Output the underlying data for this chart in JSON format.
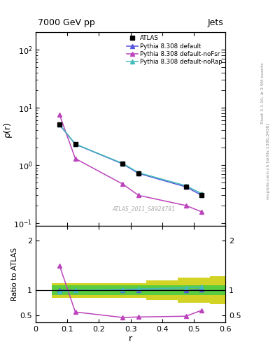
{
  "title_left": "7000 GeV pp",
  "title_right": "Jets",
  "ylabel_main": "ρ(r)",
  "ylabel_ratio": "Ratio to ATLAS",
  "xlabel": "r",
  "watermark": "ATLAS_2011_S8924791",
  "right_label_top": "Rivet 3.1.10, ≥ 2.9M events",
  "right_label_bot": "mcplots.cern.ch [arXiv:1306.3436]",
  "atlas_x": [
    0.075,
    0.125,
    0.275,
    0.325,
    0.475,
    0.525
  ],
  "atlas_y": [
    5.0,
    2.3,
    1.05,
    0.72,
    0.42,
    0.3
  ],
  "default_x": [
    0.075,
    0.125,
    0.275,
    0.325,
    0.475,
    0.525
  ],
  "default_y": [
    5.0,
    2.3,
    1.05,
    0.72,
    0.42,
    0.3
  ],
  "noFsr_x": [
    0.075,
    0.125,
    0.275,
    0.325,
    0.475,
    0.525
  ],
  "noFsr_y": [
    7.5,
    1.3,
    0.47,
    0.3,
    0.2,
    0.155
  ],
  "noRap_x": [
    0.075,
    0.125,
    0.275,
    0.325,
    0.475,
    0.525
  ],
  "noRap_y": [
    5.1,
    2.32,
    1.07,
    0.74,
    0.44,
    0.32
  ],
  "ratio_default_x": [
    0.075,
    0.125,
    0.275,
    0.325,
    0.475,
    0.525
  ],
  "ratio_default_y": [
    1.0,
    1.0,
    1.0,
    1.0,
    1.0,
    1.01
  ],
  "ratio_noFsr_x": [
    0.075,
    0.125,
    0.275,
    0.325,
    0.475,
    0.525
  ],
  "ratio_noFsr_y": [
    1.5,
    0.565,
    0.455,
    0.465,
    0.48,
    0.6
  ],
  "ratio_noRap_x": [
    0.075,
    0.125,
    0.275,
    0.325,
    0.475,
    0.525
  ],
  "ratio_noRap_y": [
    0.97,
    1.0,
    1.02,
    1.03,
    1.05,
    1.07
  ],
  "band_edges": [
    0.05,
    0.1,
    0.15,
    0.25,
    0.35,
    0.45,
    0.55,
    0.6
  ],
  "band_green_lo": [
    0.9,
    0.9,
    0.9,
    0.9,
    0.9,
    0.9,
    0.9,
    0.9
  ],
  "band_green_hi": [
    1.1,
    1.1,
    1.1,
    1.1,
    1.1,
    1.1,
    1.1,
    1.1
  ],
  "band_yellow_lo": [
    0.85,
    0.85,
    0.85,
    0.85,
    0.8,
    0.75,
    0.72,
    0.72
  ],
  "band_yellow_hi": [
    1.15,
    1.15,
    1.15,
    1.15,
    1.2,
    1.25,
    1.28,
    1.28
  ],
  "color_atlas": "#000000",
  "color_default": "#5555dd",
  "color_noFsr": "#bb44bb",
  "color_noRap": "#44bbbb",
  "color_green": "#44cc44",
  "color_yellow": "#cccc00",
  "ylim_main": [
    0.09,
    200
  ],
  "ylim_ratio": [
    0.36,
    2.3
  ],
  "xlim": [
    0.0,
    0.6
  ],
  "legend_labels": [
    "ATLAS",
    "Pythia 8.308 default",
    "Pythia 8.308 default-noFsr",
    "Pythia 8.308 default-noRap"
  ]
}
